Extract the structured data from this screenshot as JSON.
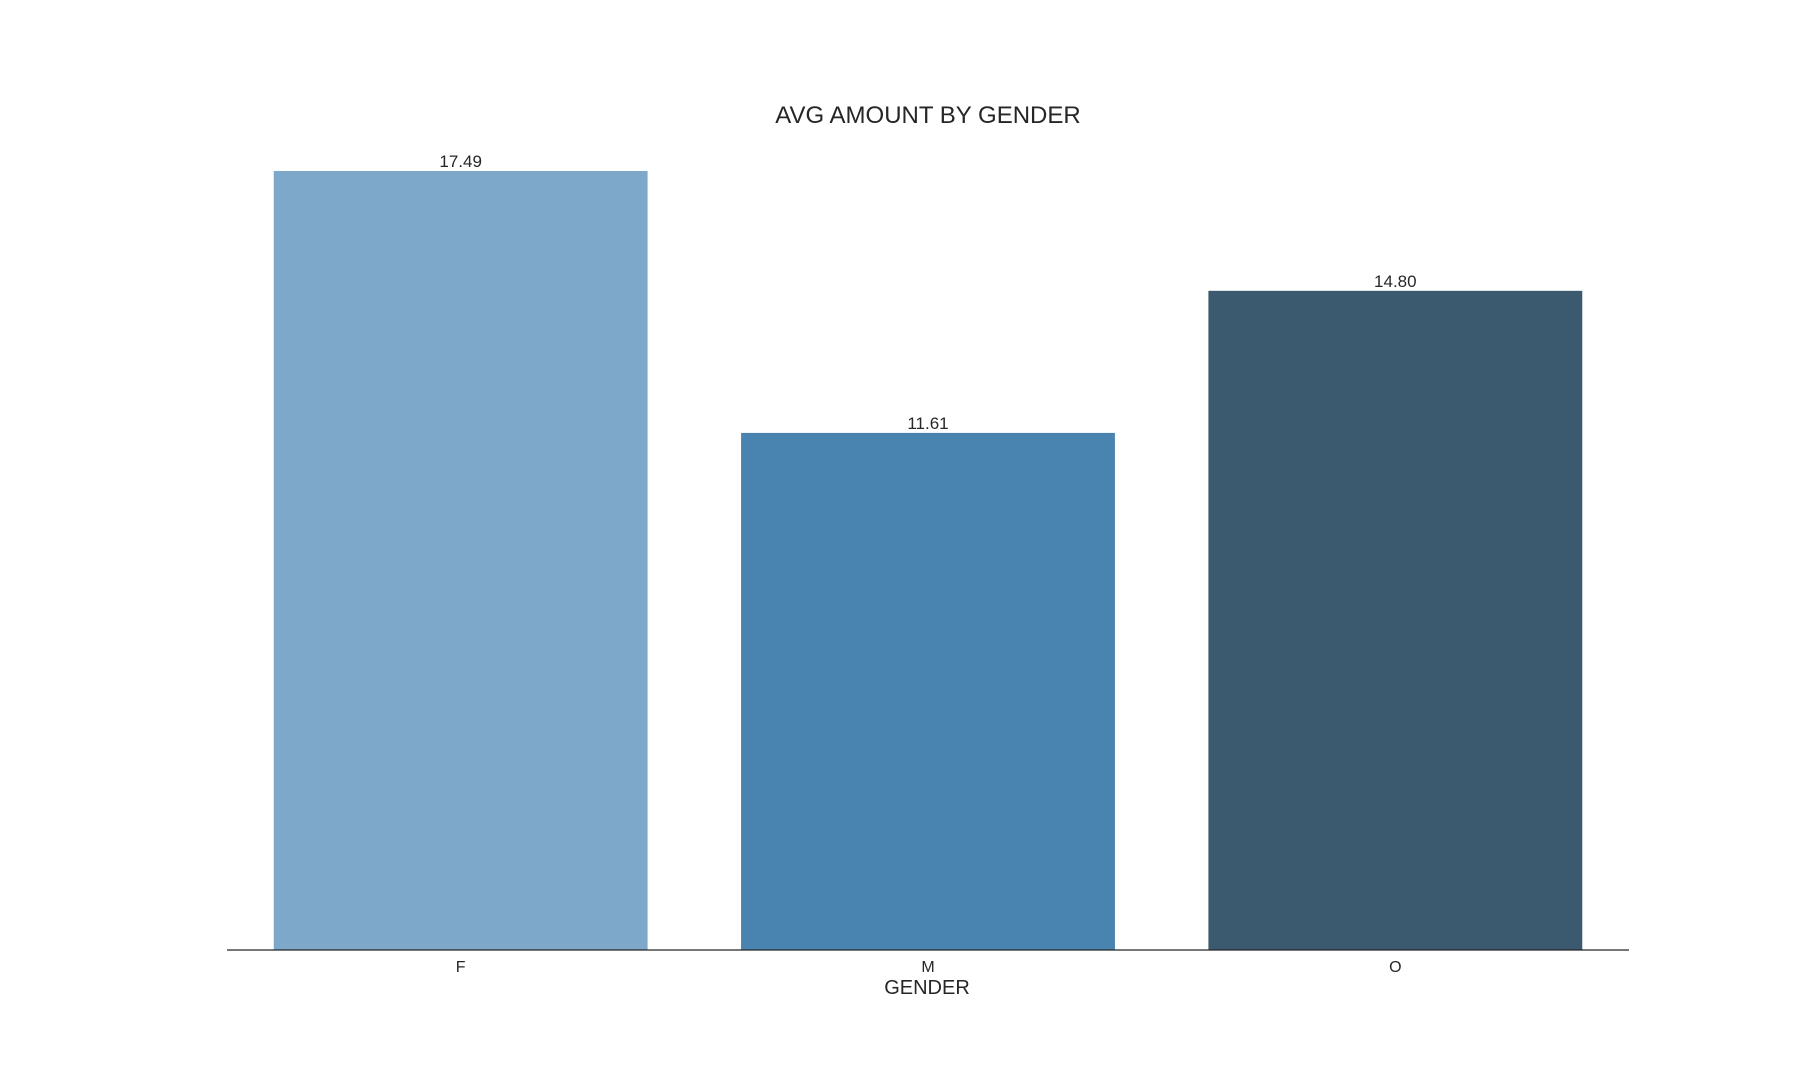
{
  "chart_data": {
    "type": "bar",
    "title": "AVG AMOUNT BY GENDER",
    "xlabel": "GENDER",
    "ylabel": "",
    "categories": [
      "F",
      "M",
      "O"
    ],
    "values": [
      17.49,
      11.61,
      14.8
    ],
    "value_labels": [
      "17.49",
      "11.61",
      "14.80"
    ],
    "colors": [
      "#7ea8c9",
      "#4984b0",
      "#3c5a6f"
    ],
    "ylim": [
      0,
      17.49
    ],
    "grid": false,
    "legend": "none"
  }
}
